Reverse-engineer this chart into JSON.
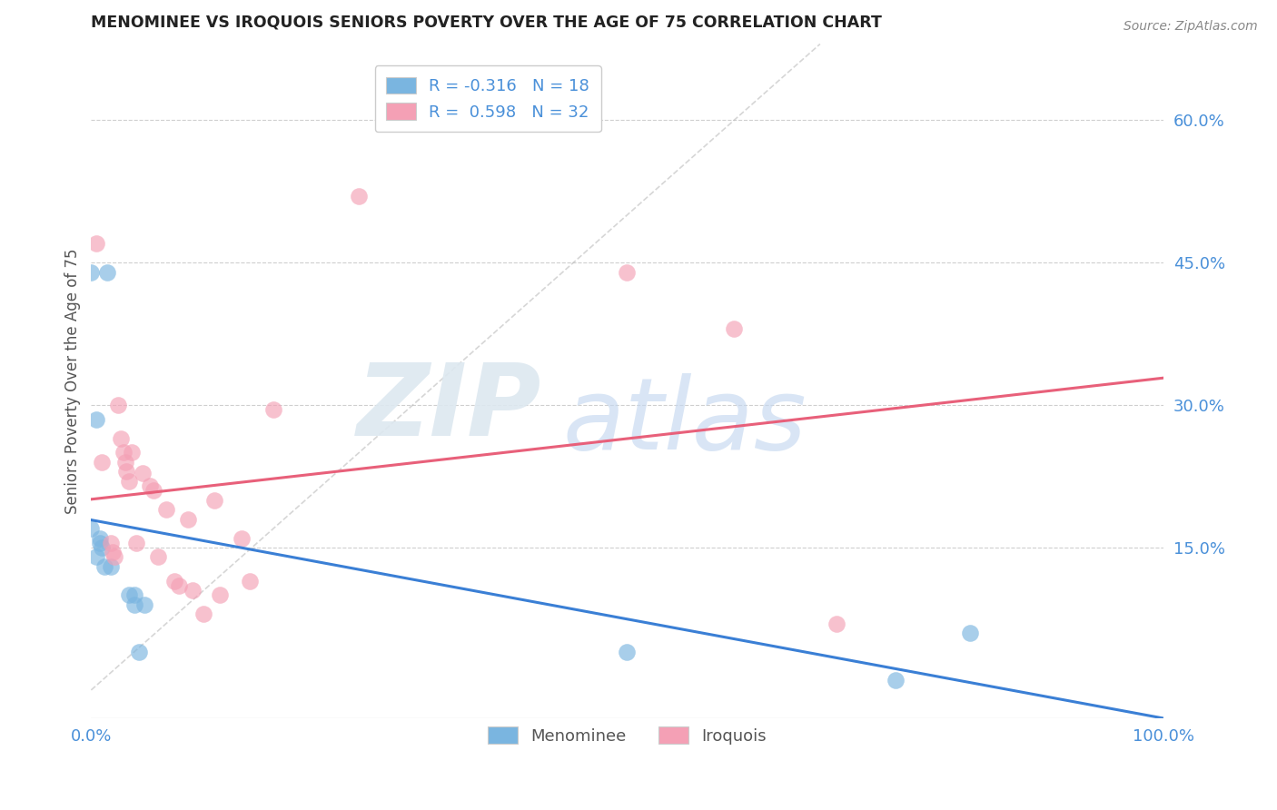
{
  "title": "MENOMINEE VS IROQUOIS SENIORS POVERTY OVER THE AGE OF 75 CORRELATION CHART",
  "source": "Source: ZipAtlas.com",
  "ylabel": "Seniors Poverty Over the Age of 75",
  "xlim": [
    0.0,
    1.0
  ],
  "ylim": [
    -0.03,
    0.68
  ],
  "yticks": [
    0.0,
    0.15,
    0.3,
    0.45,
    0.6
  ],
  "ytick_labels": [
    "",
    "15.0%",
    "30.0%",
    "45.0%",
    "60.0%"
  ],
  "xticks": [
    0.0,
    0.2,
    0.4,
    0.6,
    0.8,
    1.0
  ],
  "xtick_labels": [
    "0.0%",
    "",
    "",
    "",
    "",
    "100.0%"
  ],
  "menominee_x": [
    0.005,
    0.015,
    0.0,
    0.0,
    0.008,
    0.008,
    0.01,
    0.005,
    0.012,
    0.018,
    0.035,
    0.04,
    0.04,
    0.05,
    0.045,
    0.82,
    0.75,
    0.5
  ],
  "menominee_y": [
    0.285,
    0.44,
    0.44,
    0.17,
    0.16,
    0.155,
    0.15,
    0.14,
    0.13,
    0.13,
    0.1,
    0.1,
    0.09,
    0.09,
    0.04,
    0.06,
    0.01,
    0.04
  ],
  "iroquois_x": [
    0.005,
    0.01,
    0.018,
    0.02,
    0.022,
    0.025,
    0.028,
    0.03,
    0.032,
    0.033,
    0.035,
    0.038,
    0.042,
    0.048,
    0.055,
    0.058,
    0.062,
    0.07,
    0.078,
    0.082,
    0.09,
    0.095,
    0.105,
    0.115,
    0.12,
    0.14,
    0.148,
    0.17,
    0.25,
    0.5,
    0.6,
    0.695
  ],
  "iroquois_y": [
    0.47,
    0.24,
    0.155,
    0.145,
    0.14,
    0.3,
    0.265,
    0.25,
    0.24,
    0.23,
    0.22,
    0.25,
    0.155,
    0.228,
    0.215,
    0.21,
    0.14,
    0.19,
    0.115,
    0.11,
    0.18,
    0.105,
    0.08,
    0.2,
    0.1,
    0.16,
    0.115,
    0.295,
    0.52,
    0.44,
    0.38,
    0.07
  ],
  "menominee_color": "#7ab5e0",
  "iroquois_color": "#f4a0b5",
  "menominee_line_color": "#3a7fd5",
  "iroquois_line_color": "#e8607a",
  "menominee_R": -0.316,
  "menominee_N": 18,
  "iroquois_R": 0.598,
  "iroquois_N": 32,
  "watermark_zip": "ZIP",
  "watermark_atlas": "atlas",
  "background_color": "#ffffff",
  "grid_color": "#bbbbbb",
  "title_color": "#222222",
  "axis_label_color": "#555555",
  "tick_color": "#4a90d9",
  "legend_label1": "Menominee",
  "legend_label2": "Iroquois"
}
